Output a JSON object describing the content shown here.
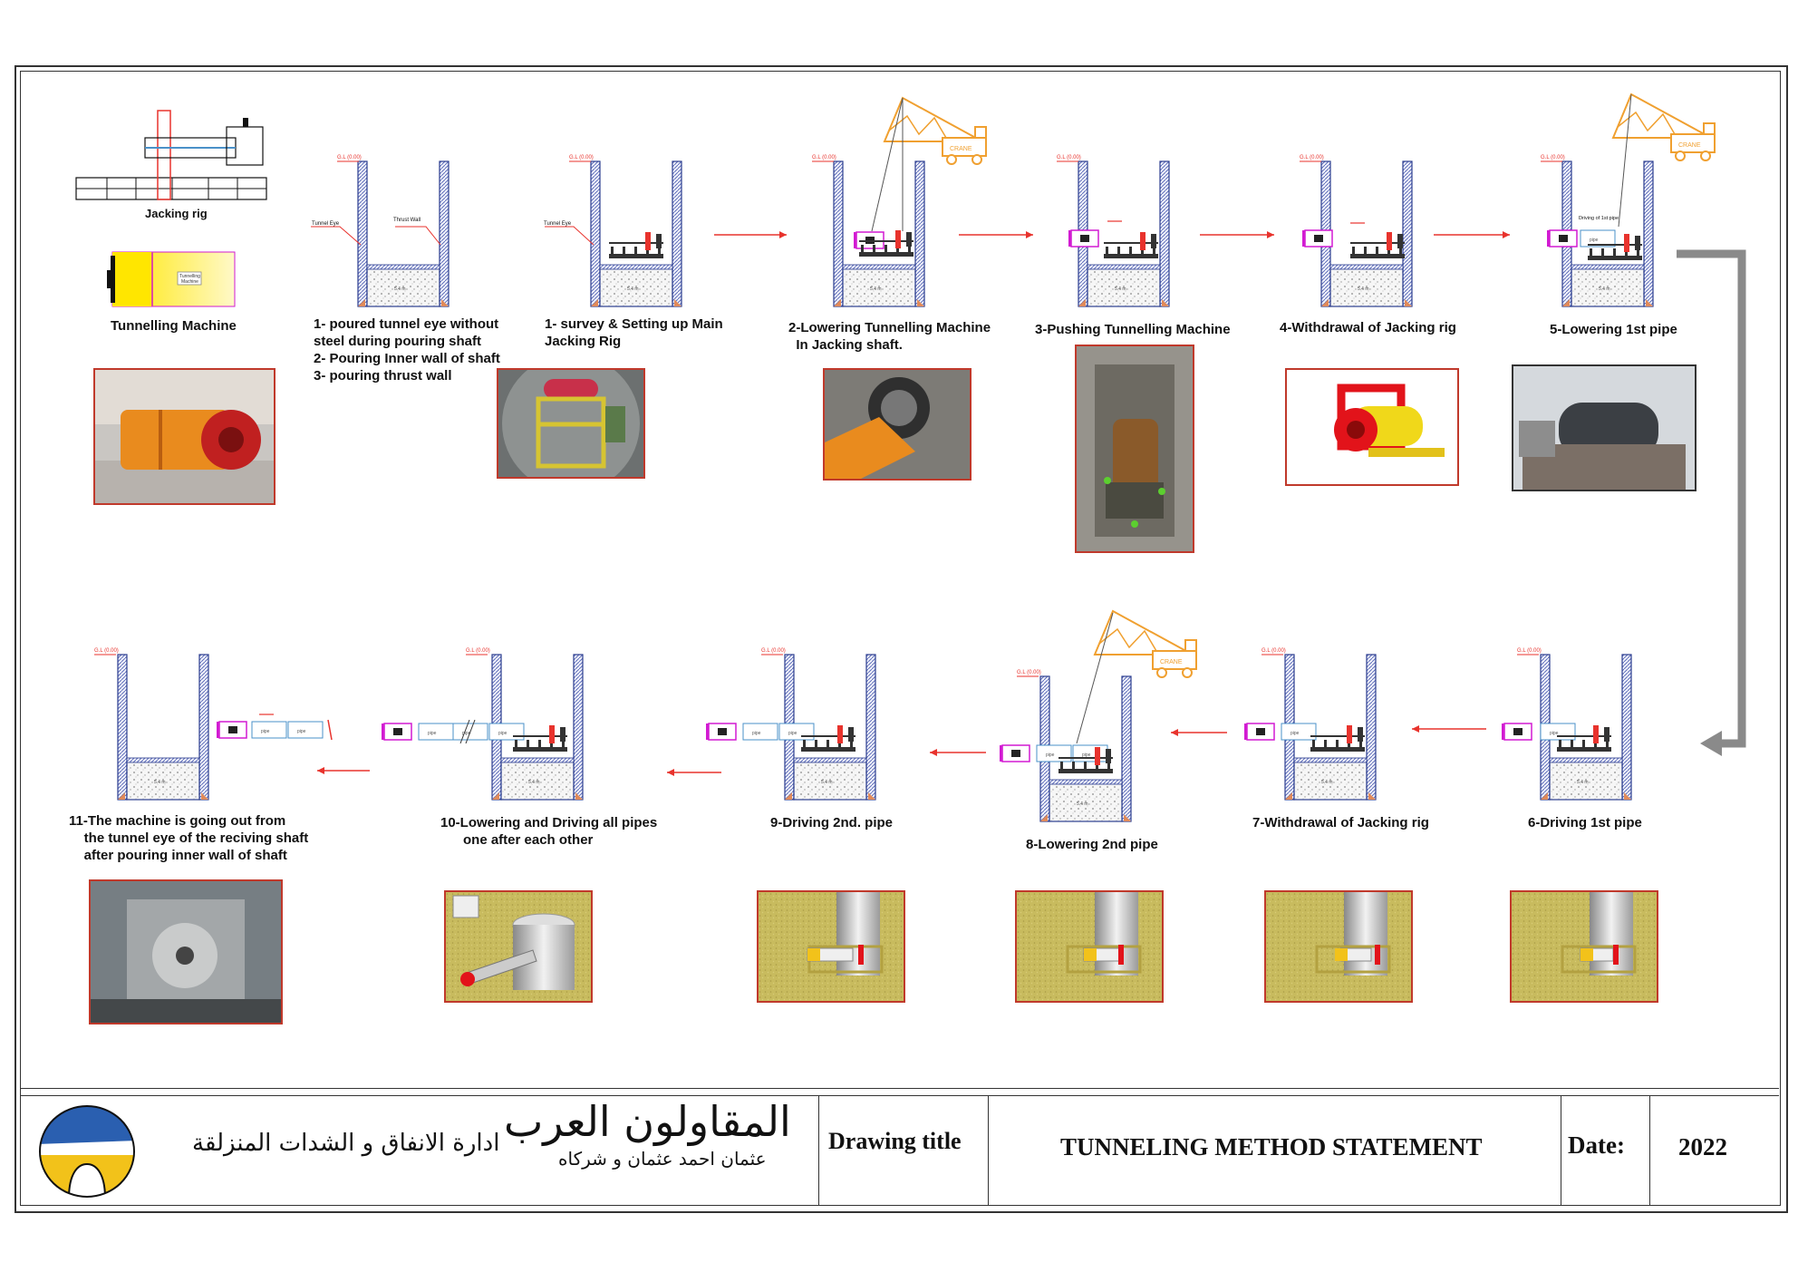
{
  "legend_items": {
    "jacking_rig": "Jacking rig",
    "tunnelling_machine": "Tunnelling Machine",
    "tunnelling_machine_small": "Tunnelling Machine"
  },
  "small_tags": {
    "gl": "G.L (0.00)",
    "tunnel_eye": "Tunnel Eye",
    "thrust_wall": "Thrust Wall",
    "crane": "CRANE",
    "driving_1st_pipe": "Driving of 1st pipe",
    "first_pipe": "1st pipe"
  },
  "steps": {
    "step0": "1- poured tunnel eye without\nsteel during pouring shaft\n2- Pouring Inner wall of shaft\n3- pouring thrust wall",
    "step1": "1- survey & Setting up Main\nJacking Rig",
    "step2": "2-Lowering Tunnelling Machine\n  In Jacking shaft.",
    "step3": "3-Pushing Tunnelling Machine",
    "step4": "4-Withdrawal of Jacking rig",
    "step5": "5-Lowering 1st pipe",
    "step6": "6-Driving 1st pipe",
    "step7": "7-Withdrawal of Jacking rig",
    "step8": "8-Lowering 2nd pipe",
    "step9": "9-Driving 2nd. pipe",
    "step10": "10-Lowering and Driving all pipes\n      one after each other",
    "step11": "11-The machine is going out from\n    the tunnel eye of the reciving shaft\n    after pouring inner wall of shaft"
  },
  "title_block": {
    "department_ar": "ادارة الانفاق و الشدات المنزلقة",
    "company_ar": "المقاولون العرب",
    "company_sub_ar": "عثمان احمد عثمان و شركاه",
    "drawing_title_label": "Drawing title",
    "drawing_title": "TUNNELING METHOD STATEMENT",
    "date_label": "Date:",
    "date_value": "2022"
  },
  "colors": {
    "arrow_red": "#e8332d",
    "shaft_blue": "#2c3e8f",
    "crane_orange": "#f0a030",
    "machine_magenta": "#d21ad2",
    "machine_yellow": "#f4f01e",
    "flow_arrow_gray": "#8a8a8a",
    "photo_border": "#c0392b"
  }
}
